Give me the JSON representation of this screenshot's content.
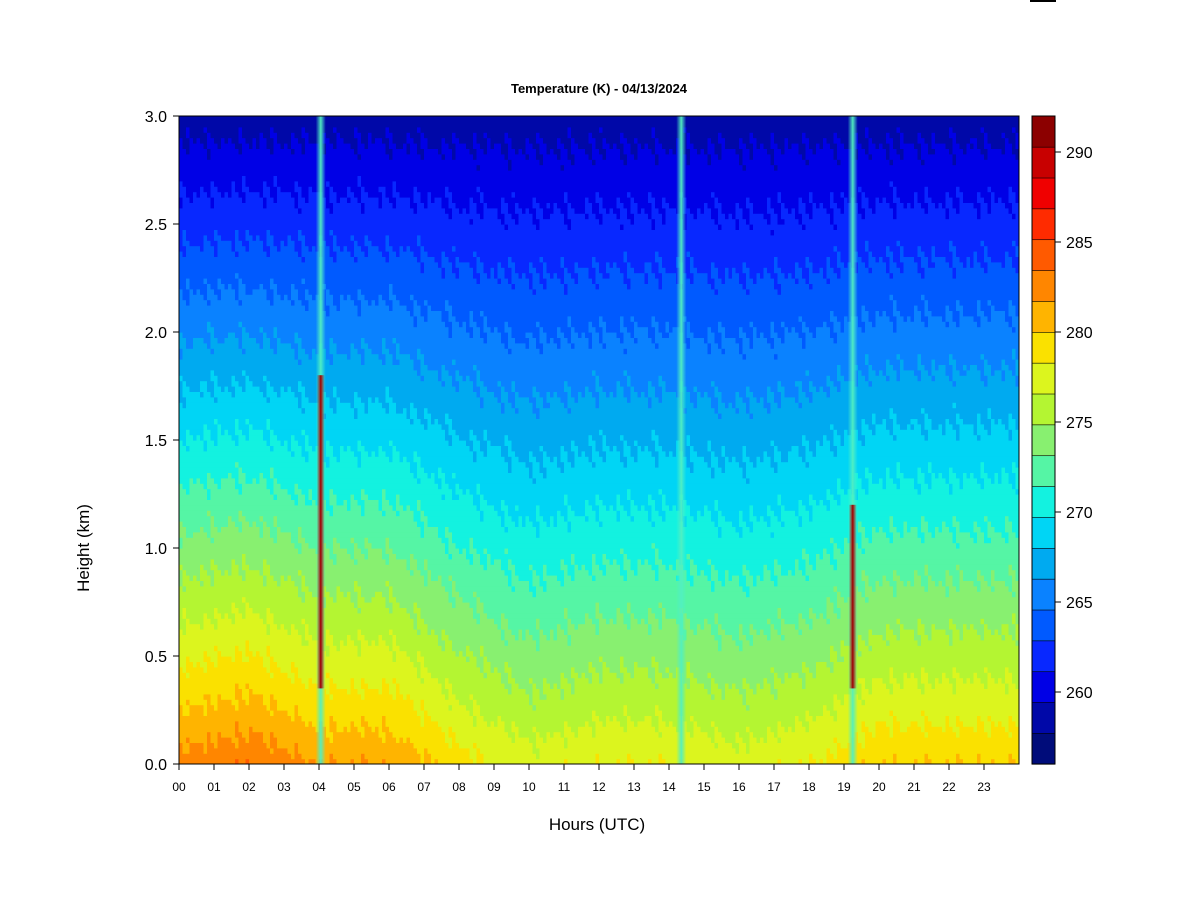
{
  "chart_data": {
    "type": "heatmap",
    "title": "Temperature (K) - 04/13/2024",
    "xlabel": "Hours (UTC)",
    "ylabel": "Height (km)",
    "xlim": [
      0,
      24
    ],
    "ylim": [
      0.0,
      3.0
    ],
    "x_ticks": [
      "00",
      "01",
      "02",
      "03",
      "04",
      "05",
      "06",
      "07",
      "08",
      "09",
      "10",
      "11",
      "12",
      "13",
      "14",
      "15",
      "16",
      "17",
      "18",
      "19",
      "20",
      "21",
      "22",
      "23"
    ],
    "y_ticks": [
      "0.0",
      "0.5",
      "1.0",
      "1.5",
      "2.0",
      "2.5",
      "3.0"
    ],
    "colorbar": {
      "min": 256,
      "max": 292,
      "step": 2,
      "ticks": [
        "260",
        "265",
        "270",
        "275",
        "280",
        "285",
        "290"
      ],
      "colors": [
        "#000c7a",
        "#0008a8",
        "#0000e6",
        "#0828ff",
        "#005aff",
        "#0a82ff",
        "#00aaf0",
        "#00d5f5",
        "#13f2e0",
        "#55f5a5",
        "#88f070",
        "#b4f532",
        "#dcf51e",
        "#fae100",
        "#ffb400",
        "#ff8600",
        "#ff5a00",
        "#ff2b00",
        "#f00000",
        "#c80000",
        "#8c0000"
      ]
    },
    "surface_temperature_by_hour": [
      {
        "hour": 0,
        "temperature": 287
      },
      {
        "hour": 2,
        "temperature": 288
      },
      {
        "hour": 4,
        "temperature": 286
      },
      {
        "hour": 6,
        "temperature": 286
      },
      {
        "hour": 8,
        "temperature": 283
      },
      {
        "hour": 10,
        "temperature": 281
      },
      {
        "hour": 12,
        "temperature": 282
      },
      {
        "hour": 14,
        "temperature": 282
      },
      {
        "hour": 16,
        "temperature": 281
      },
      {
        "hour": 18,
        "temperature": 282
      },
      {
        "hour": 20,
        "temperature": 284
      },
      {
        "hour": 22,
        "temperature": 284
      }
    ],
    "top_temperature_km3": 259,
    "precipitation_streaks_hours": [
      4.05,
      14.35,
      19.25
    ]
  }
}
